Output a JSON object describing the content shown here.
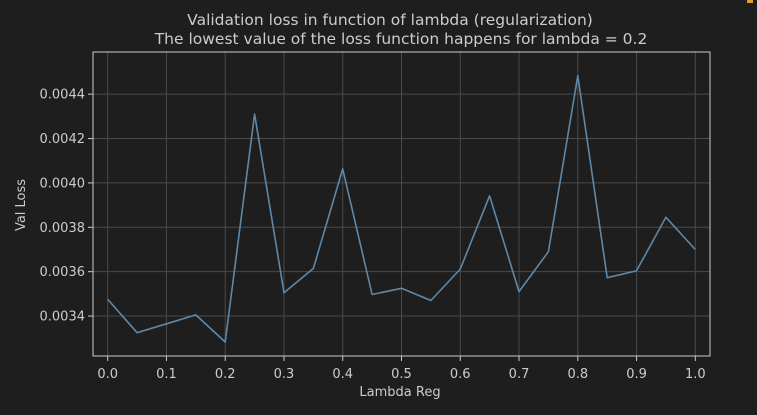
{
  "chart_data": {
    "type": "line",
    "title": "Validation loss in function of lambda (regularization)",
    "subtitle": "The lowest value of the loss function happens for lambda = 0.2",
    "xlabel": "Lambda Reg",
    "ylabel": "Val Loss",
    "xlim": [
      -0.025,
      1.025
    ],
    "ylim": [
      0.00322,
      0.00459
    ],
    "grid": true,
    "line_color": "#5f88a8",
    "x_ticks": [
      0.0,
      0.1,
      0.2,
      0.3,
      0.4,
      0.5,
      0.6,
      0.7,
      0.8,
      0.9,
      1.0
    ],
    "x_tick_labels": [
      "0.0",
      "0.1",
      "0.2",
      "0.3",
      "0.4",
      "0.5",
      "0.6",
      "0.7",
      "0.8",
      "0.9",
      "1.0"
    ],
    "y_ticks": [
      0.0034,
      0.0036,
      0.0038,
      0.004,
      0.0042,
      0.0044
    ],
    "y_tick_labels": [
      "0.0034",
      "0.0036",
      "0.0038",
      "0.0040",
      "0.0042",
      "0.0044"
    ],
    "series": [
      {
        "x": [
          0.0,
          0.05,
          0.1,
          0.15,
          0.2,
          0.25,
          0.3,
          0.35,
          0.4,
          0.45,
          0.5,
          0.55,
          0.6,
          0.65,
          0.7,
          0.75,
          0.8,
          0.85,
          0.9,
          0.95,
          1.0
        ],
        "y": [
          0.003475,
          0.003325,
          0.003365,
          0.003405,
          0.003283,
          0.00431,
          0.003505,
          0.003615,
          0.004063,
          0.003497,
          0.003525,
          0.00347,
          0.003612,
          0.003942,
          0.00351,
          0.00369,
          0.004483,
          0.003573,
          0.003604,
          0.003845,
          0.0037
        ]
      }
    ]
  }
}
